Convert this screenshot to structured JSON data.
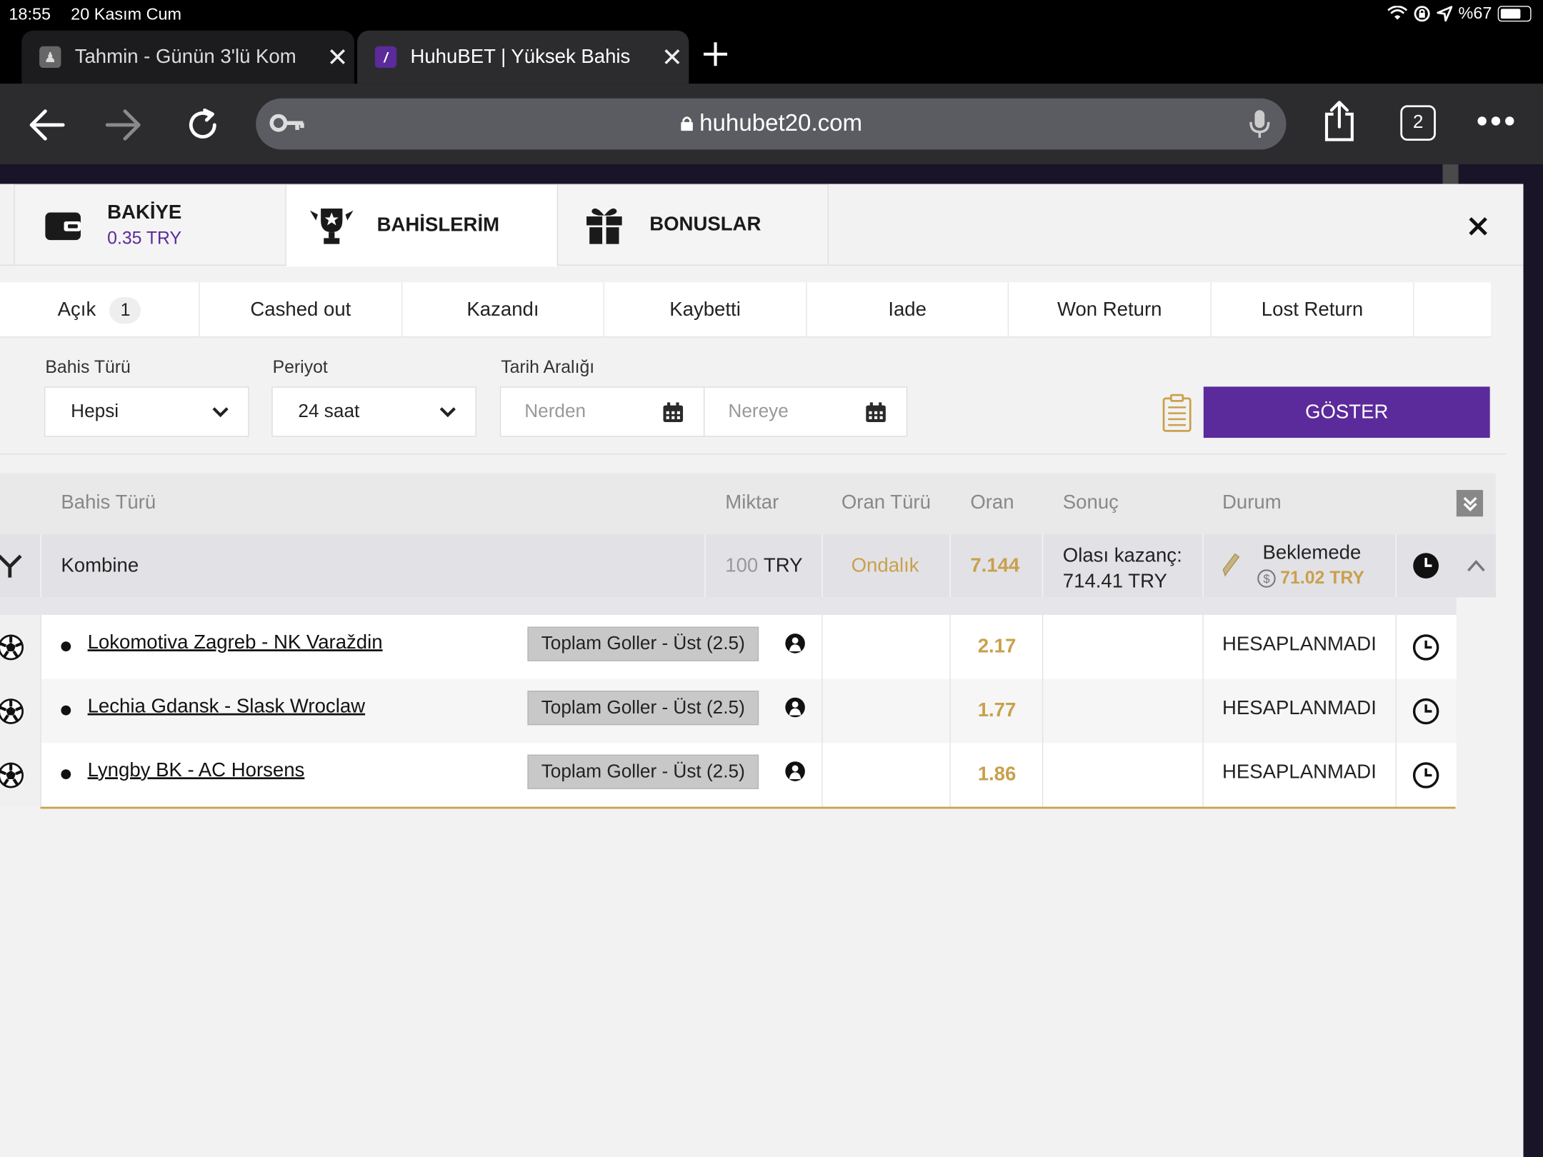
{
  "status_bar": {
    "time": "18:55",
    "date": "20 Kasım Cum",
    "battery": "%67"
  },
  "browser": {
    "tabs": [
      {
        "title": "Tahmin - Günün 3'lü Kom",
        "favicon": "person-favicon"
      },
      {
        "title": "HuhuBET | Yüksek Bahis",
        "favicon": "feather-favicon"
      }
    ],
    "url": "huhubet20.com",
    "tab_count": "2"
  },
  "account_nav": {
    "balance_label": "BAKİYE",
    "balance_value": "0.35 TRY",
    "bets_label": "BAHİSLERİM",
    "bonus_label": "BONUSLAR"
  },
  "filter_tabs": [
    {
      "label": "Açık",
      "badge": "1"
    },
    {
      "label": "Cashed out"
    },
    {
      "label": "Kazandı"
    },
    {
      "label": "Kaybetti"
    },
    {
      "label": "Iade"
    },
    {
      "label": "Won Return"
    },
    {
      "label": "Lost Return"
    }
  ],
  "filters": {
    "bet_type_label": "Bahis Türü",
    "bet_type_value": "Hepsi",
    "period_label": "Periyot",
    "period_value": "24 saat",
    "date_range_label": "Tarih Aralığı",
    "from_placeholder": "Nerden",
    "to_placeholder": "Nereye",
    "show_button": "GÖSTER"
  },
  "table": {
    "headers": {
      "bet_type": "Bahis Türü",
      "amount": "Miktar",
      "odds_type": "Oran Türü",
      "odds": "Oran",
      "result": "Sonuç",
      "status": "Durum"
    },
    "bet": {
      "type": "Kombine",
      "amount_value": "100",
      "amount_currency": "TRY",
      "odds_type": "Ondalık",
      "odds": "7.144",
      "possible_win_label": "Olası kazanç:",
      "possible_win_value": "714.41 TRY",
      "status": "Beklemede",
      "cashout_value": "71.02 TRY"
    },
    "selections": [
      {
        "match": "Lokomotiva Zagreb - NK Varaždin",
        "market": "Toplam Goller - Üst (2.5)",
        "odds": "2.17",
        "status": "HESAPLANMADI"
      },
      {
        "match": "Lechia Gdansk - Slask Wroclaw",
        "market": "Toplam Goller - Üst (2.5)",
        "odds": "1.77",
        "status": "HESAPLANMADI"
      },
      {
        "match": "Lyngby BK - AC Horsens",
        "market": "Toplam Goller - Üst (2.5)",
        "odds": "1.86",
        "status": "HESAPLANMADI"
      }
    ]
  },
  "colors": {
    "accent_purple": "#5b2a9b",
    "gold": "#c9a04c"
  }
}
